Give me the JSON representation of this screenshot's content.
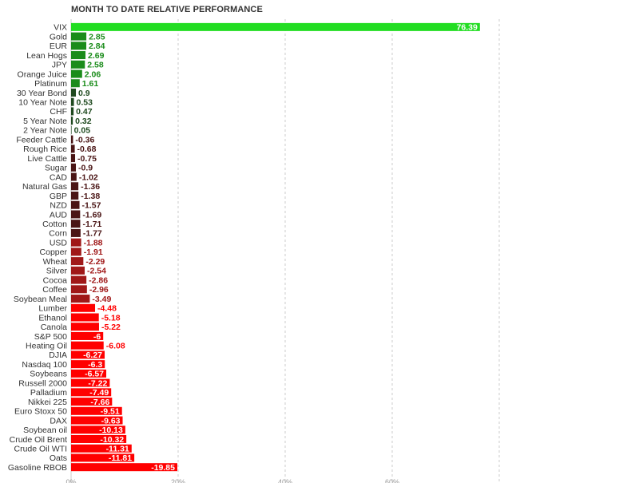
{
  "chart_data": {
    "type": "bar",
    "orientation": "horizontal",
    "title": "MONTH TO DATE RELATIVE PERFORMANCE",
    "categories": [
      "VIX",
      "Gold",
      "EUR",
      "Lean Hogs",
      "JPY",
      "Orange Juice",
      "Platinum",
      "30 Year Bond",
      "10 Year Note",
      "CHF",
      "5 Year Note",
      "2 Year Note",
      "Feeder Cattle",
      "Rough Rice",
      "Live Cattle",
      "Sugar",
      "CAD",
      "Natural Gas",
      "GBP",
      "NZD",
      "AUD",
      "Cotton",
      "Corn",
      "USD",
      "Copper",
      "Wheat",
      "Silver",
      "Cocoa",
      "Coffee",
      "Soybean Meal",
      "Lumber",
      "Ethanol",
      "Canola",
      "S&P 500",
      "Heating Oil",
      "DJIA",
      "Nasdaq 100",
      "Soybeans",
      "Russell 2000",
      "Palladium",
      "Nikkei 225",
      "Euro Stoxx 50",
      "DAX",
      "Soybean oil",
      "Crude Oil Brent",
      "Crude Oil WTI",
      "Oats",
      "Gasoline RBOB"
    ],
    "values": [
      76.39,
      2.85,
      2.84,
      2.69,
      2.58,
      2.06,
      1.61,
      0.9,
      0.53,
      0.47,
      0.32,
      0.05,
      -0.36,
      -0.68,
      -0.75,
      -0.9,
      -1.02,
      -1.36,
      -1.38,
      -1.57,
      -1.69,
      -1.71,
      -1.77,
      -1.88,
      -1.91,
      -2.29,
      -2.54,
      -2.86,
      -2.96,
      -3.49,
      -4.48,
      -5.18,
      -5.22,
      -6,
      -6.08,
      -6.27,
      -6.3,
      -6.57,
      -7.22,
      -7.49,
      -7.66,
      -9.51,
      -9.63,
      -10.13,
      -10.32,
      -11.31,
      -11.81,
      -19.85
    ],
    "value_labels": [
      "76.39",
      "2.85",
      "2.84",
      "2.69",
      "2.58",
      "2.06",
      "1.61",
      "0.9",
      "0.53",
      "0.47",
      "0.32",
      "0.05",
      "-0.36",
      "-0.68",
      "-0.75",
      "-0.9",
      "-1.02",
      "-1.36",
      "-1.38",
      "-1.57",
      "-1.69",
      "-1.71",
      "-1.77",
      "-1.88",
      "-1.91",
      "-2.29",
      "-2.54",
      "-2.86",
      "-2.96",
      "-3.49",
      "-4.48",
      "-5.18",
      "-5.22",
      "-6",
      "-6.08",
      "-6.27",
      "-6.3",
      "-6.57",
      "-7.22",
      "-7.49",
      "-7.66",
      "-9.51",
      "-9.63",
      "-10.13",
      "-10.32",
      "-11.31",
      "-11.81",
      "-19.85"
    ],
    "xlim": [
      0,
      80
    ],
    "x_ticks": [
      0,
      20,
      40,
      60,
      80
    ],
    "x_tick_labels": [
      "0%",
      "20%",
      "40%",
      "60%",
      ""
    ],
    "bar_magnitude": "absolute",
    "grid": true,
    "legend": "none",
    "colors": {
      "positive_strong": "#22dd22",
      "positive": "#1a8c1a",
      "positive_dark": "#1f4a1f",
      "negative_dark": "#4a1515",
      "negative_mid": "#a01818",
      "negative_strong": "#ff0000",
      "label_on_bar": "#ffffff",
      "grid": "#cccccc",
      "category_text": "#333333"
    }
  }
}
